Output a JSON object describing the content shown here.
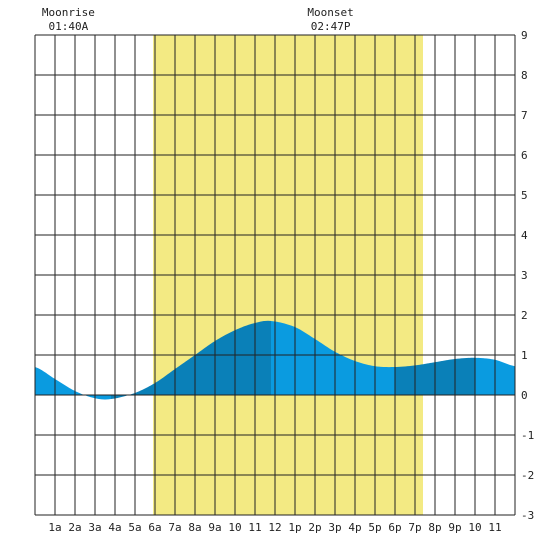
{
  "chart_data": {
    "type": "area",
    "title": "",
    "xlabel": "",
    "ylabel": "",
    "x_tick_labels": [
      "1a",
      "2a",
      "3a",
      "4a",
      "5a",
      "6a",
      "7a",
      "8a",
      "9a",
      "10",
      "11",
      "12",
      "1p",
      "2p",
      "3p",
      "4p",
      "5p",
      "6p",
      "7p",
      "8p",
      "9p",
      "10",
      "11"
    ],
    "y_ticks": [
      "9",
      "8",
      "7",
      "6",
      "5",
      "4",
      "3",
      "2",
      "1",
      "0",
      "-1",
      "-2",
      "-3"
    ],
    "xlim": [
      0.0,
      24.0
    ],
    "ylim": [
      -3,
      9
    ],
    "grid": true,
    "daylight": {
      "start_hour": 5.9,
      "end_hour": 19.4,
      "color": "#f3ea83"
    },
    "moon_events": [
      {
        "label": "Moonrise",
        "time": "01:40A",
        "hour": 1.67
      },
      {
        "label": "Moonset",
        "time": "02:47P",
        "hour": 14.78
      }
    ],
    "series": [
      {
        "x": [
          0.0,
          1.0,
          2.0,
          3.0,
          3.8,
          5.0,
          6.0,
          7.0,
          8.0,
          9.0,
          10.0,
          11.0,
          11.8,
          13.0,
          14.0,
          15.0,
          16.0,
          17.0,
          18.0,
          19.0,
          20.0,
          21.0,
          22.0,
          23.0,
          24.0
        ],
        "y": [
          0.7,
          0.4,
          0.1,
          -0.08,
          -0.1,
          0.05,
          0.3,
          0.65,
          1.0,
          1.35,
          1.62,
          1.8,
          1.85,
          1.7,
          1.4,
          1.08,
          0.85,
          0.72,
          0.7,
          0.74,
          0.82,
          0.9,
          0.93,
          0.88,
          0.72
        ]
      }
    ],
    "colors": {
      "tide_light": "#0a9be0",
      "tide_dark": "#0a80b8",
      "grid": "#222222"
    }
  }
}
